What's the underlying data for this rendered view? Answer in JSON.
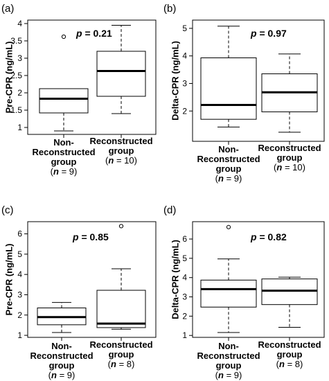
{
  "chart_data": [
    {
      "type": "box",
      "panel_label": "(a)",
      "ylabel": "Pre-CPR (ng/mL)",
      "ylim": [
        0.8,
        4.1
      ],
      "yticks": [
        "1",
        "1.5",
        "2",
        "2.5",
        "3",
        "3.5",
        "4"
      ],
      "p_prefix": "p",
      "p_text": " = 0.21",
      "groups": [
        {
          "name_lines": [
            "Non-",
            "Reconstructed",
            "group"
          ],
          "n_prefix": "(",
          "n_var": "n",
          "n_text": " = 9)",
          "whisker_low": 0.9,
          "q1": 1.42,
          "median": 1.83,
          "q3": 2.12,
          "whisker_high": 2.12,
          "outliers": [
            3.62
          ]
        },
        {
          "name_lines": [
            "Reconstructed",
            "group"
          ],
          "n_prefix": "(",
          "n_var": "n",
          "n_text": " = 10)",
          "whisker_low": 1.4,
          "q1": 1.9,
          "median": 2.63,
          "q3": 3.2,
          "whisker_high": 3.95,
          "outliers": []
        }
      ]
    },
    {
      "type": "box",
      "panel_label": "(b)",
      "ylabel": "Delta-CPR (ng/mL)",
      "ylim": [
        0.9,
        5.3
      ],
      "yticks": [
        "2",
        "3",
        "4",
        "5"
      ],
      "p_prefix": "p",
      "p_text": " = 0.97",
      "groups": [
        {
          "name_lines": [
            "Non-",
            "Reconstructed",
            "group"
          ],
          "n_prefix": "(",
          "n_var": "n",
          "n_text": " = 9)",
          "whisker_low": 1.42,
          "q1": 1.7,
          "median": 2.22,
          "q3": 3.93,
          "whisker_high": 5.08,
          "outliers": []
        },
        {
          "name_lines": [
            "Reconstructed",
            "group"
          ],
          "n_prefix": "(",
          "n_var": "n",
          "n_text": " = 10)",
          "whisker_low": 1.23,
          "q1": 1.97,
          "median": 2.68,
          "q3": 3.35,
          "whisker_high": 4.07,
          "outliers": []
        }
      ]
    },
    {
      "type": "box",
      "panel_label": "(c)",
      "ylabel": "Pre-CPR (ng/mL)",
      "ylim": [
        0.9,
        6.6
      ],
      "yticks": [
        "1",
        "2",
        "3",
        "4",
        "5",
        "6"
      ],
      "p_prefix": "p",
      "p_text": " = 0.85",
      "groups": [
        {
          "name_lines": [
            "Non-",
            "Reconstructed",
            "group"
          ],
          "n_prefix": "(",
          "n_var": "n",
          "n_text": " = 9)",
          "whisker_low": 1.14,
          "q1": 1.52,
          "median": 1.9,
          "q3": 2.35,
          "whisker_high": 2.62,
          "outliers": []
        },
        {
          "name_lines": [
            "Reconstructed",
            "group"
          ],
          "n_prefix": "(",
          "n_var": "n",
          "n_text": " = 8)",
          "whisker_low": 1.3,
          "q1": 1.38,
          "median": 1.58,
          "q3": 3.22,
          "whisker_high": 4.28,
          "outliers": [
            6.38
          ]
        }
      ]
    },
    {
      "type": "box",
      "panel_label": "(d)",
      "ylabel": "Delta-CPR (ng/mL)",
      "ylim": [
        0.9,
        6.9
      ],
      "yticks": [
        "1",
        "2",
        "3",
        "4",
        "5",
        "6"
      ],
      "p_prefix": "p",
      "p_text": " = 0.82",
      "groups": [
        {
          "name_lines": [
            "Non-",
            "Reconstructed",
            "group"
          ],
          "n_prefix": "(",
          "n_var": "n",
          "n_text": " = 9)",
          "whisker_low": 1.15,
          "q1": 2.47,
          "median": 3.4,
          "q3": 3.87,
          "whisker_high": 4.97,
          "outliers": [
            6.62
          ]
        },
        {
          "name_lines": [
            "Reconstructed",
            "group"
          ],
          "n_prefix": "(",
          "n_var": "n",
          "n_text": " = 8)",
          "whisker_low": 1.42,
          "q1": 2.6,
          "median": 3.32,
          "q3": 3.93,
          "whisker_high": 4.02,
          "outliers": []
        }
      ]
    }
  ]
}
